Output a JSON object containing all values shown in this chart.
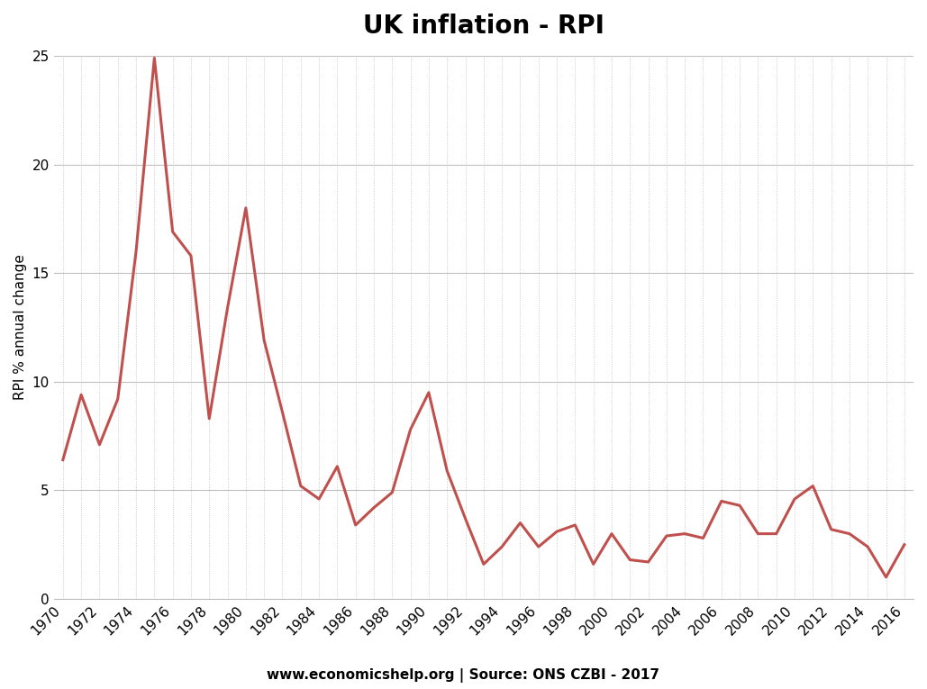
{
  "title": "UK inflation - RPI",
  "ylabel": "RPI % annual change",
  "source_text": "www.economicshelp.org | Source: ONS CZBI - 2017",
  "years": [
    1970,
    1971,
    1972,
    1973,
    1974,
    1975,
    1976,
    1977,
    1978,
    1979,
    1980,
    1981,
    1982,
    1983,
    1984,
    1985,
    1986,
    1987,
    1988,
    1989,
    1990,
    1991,
    1992,
    1993,
    1994,
    1995,
    1996,
    1997,
    1998,
    1999,
    2000,
    2001,
    2002,
    2003,
    2004,
    2005,
    2006,
    2007,
    2008,
    2009,
    2010,
    2011,
    2012,
    2013,
    2014,
    2015,
    2016
  ],
  "values": [
    6.4,
    9.4,
    7.1,
    9.2,
    16.0,
    24.9,
    16.9,
    15.8,
    8.3,
    13.4,
    18.0,
    11.9,
    8.6,
    5.2,
    4.6,
    6.1,
    3.4,
    4.2,
    4.9,
    7.8,
    9.5,
    5.9,
    3.7,
    1.6,
    2.4,
    3.5,
    2.4,
    3.1,
    3.4,
    1.6,
    3.0,
    1.8,
    1.7,
    2.9,
    3.0,
    2.8,
    4.5,
    4.3,
    3.0,
    3.0,
    4.6,
    5.2,
    3.2,
    3.0,
    2.4,
    1.0,
    2.5
  ],
  "line_color": "#c0504d",
  "background_color": "#ffffff",
  "ylim": [
    0,
    25
  ],
  "yticks": [
    0,
    5,
    10,
    15,
    20,
    25
  ],
  "xtick_years": [
    1970,
    1972,
    1974,
    1976,
    1978,
    1980,
    1982,
    1984,
    1986,
    1988,
    1990,
    1992,
    1994,
    1996,
    1998,
    2000,
    2002,
    2004,
    2006,
    2008,
    2010,
    2012,
    2014,
    2016
  ],
  "grid_color": "#bfbfbf",
  "line_width": 2.2,
  "title_fontsize": 20,
  "label_fontsize": 11,
  "tick_fontsize": 11,
  "source_fontsize": 11
}
